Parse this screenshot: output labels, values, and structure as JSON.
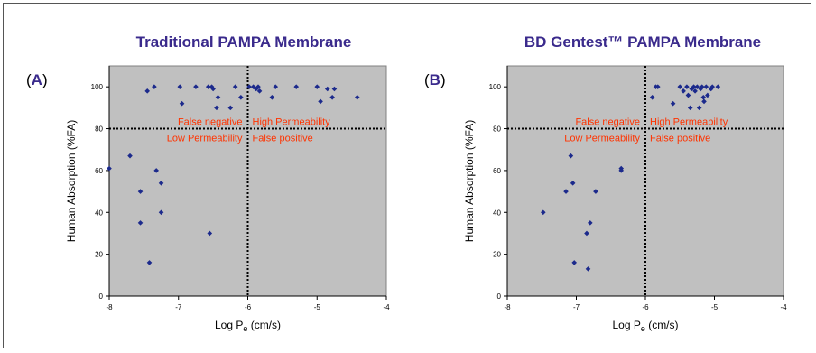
{
  "chart_data": [
    {
      "type": "scatter",
      "panel_label": "(A)",
      "title": "Traditional PAMPA Membrane",
      "xlabel": "Log P",
      "xlabel_sub": "e",
      "xlabel_unit": " (cm/s)",
      "ylabel": "Human Absorption (%FA)",
      "xlim": [
        -8,
        -4
      ],
      "ylim": [
        0,
        110
      ],
      "x_ticks": [
        "-8",
        "-7",
        "-6",
        "-5",
        "-4"
      ],
      "y_ticks": [
        "0",
        "20",
        "40",
        "60",
        "80",
        "100"
      ],
      "grid": false,
      "plot_bg": "#c0c0c0",
      "marker_color": "#1c2a8c",
      "threshold_x": -6,
      "threshold_y": 80,
      "quadrant_labels": {
        "top_left": "False negative",
        "top_right": "High Permeability",
        "bottom_left": "Low Permeability",
        "bottom_right": "False positive"
      },
      "quadrant_label_color": "#ff3300",
      "points": [
        [
          -8.0,
          61
        ],
        [
          -7.7,
          67
        ],
        [
          -7.55,
          50
        ],
        [
          -7.55,
          35
        ],
        [
          -7.45,
          98
        ],
        [
          -7.42,
          16
        ],
        [
          -7.35,
          100
        ],
        [
          -7.32,
          60
        ],
        [
          -7.25,
          54
        ],
        [
          -7.25,
          40
        ],
        [
          -6.98,
          100
        ],
        [
          -6.95,
          92
        ],
        [
          -6.75,
          100
        ],
        [
          -6.57,
          100
        ],
        [
          -6.55,
          30
        ],
        [
          -6.52,
          100
        ],
        [
          -6.5,
          99
        ],
        [
          -6.45,
          90
        ],
        [
          -6.43,
          95
        ],
        [
          -6.25,
          90
        ],
        [
          -6.18,
          100
        ],
        [
          -6.1,
          95
        ],
        [
          -5.98,
          100
        ],
        [
          -5.92,
          100
        ],
        [
          -5.88,
          99
        ],
        [
          -5.85,
          100
        ],
        [
          -5.83,
          98
        ],
        [
          -5.65,
          95
        ],
        [
          -5.6,
          100
        ],
        [
          -5.3,
          100
        ],
        [
          -5.0,
          100
        ],
        [
          -4.95,
          93
        ],
        [
          -4.85,
          99
        ],
        [
          -4.78,
          95
        ],
        [
          -4.75,
          99
        ],
        [
          -4.42,
          95
        ]
      ]
    },
    {
      "type": "scatter",
      "panel_label": "(B)",
      "title": "BD Gentest™ PAMPA Membrane",
      "xlabel": "Log P",
      "xlabel_sub": "e",
      "xlabel_unit": " (cm/s)",
      "ylabel": "Human Absorption (%FA)",
      "xlim": [
        -8,
        -4
      ],
      "ylim": [
        0,
        110
      ],
      "x_ticks": [
        "-8",
        "-7",
        "-6",
        "-5",
        "-4"
      ],
      "y_ticks": [
        "0",
        "20",
        "40",
        "60",
        "80",
        "100"
      ],
      "grid": false,
      "plot_bg": "#c0c0c0",
      "marker_color": "#1c2a8c",
      "threshold_x": -6,
      "threshold_y": 80,
      "quadrant_labels": {
        "top_left": "False negative",
        "top_right": "High Permeability",
        "bottom_left": "Low Permeability",
        "bottom_right": "False positive"
      },
      "quadrant_label_color": "#ff3300",
      "points": [
        [
          -7.48,
          40
        ],
        [
          -7.15,
          50
        ],
        [
          -7.08,
          67
        ],
        [
          -7.05,
          54
        ],
        [
          -7.03,
          16
        ],
        [
          -6.85,
          30
        ],
        [
          -6.83,
          13
        ],
        [
          -6.8,
          35
        ],
        [
          -6.72,
          50
        ],
        [
          -6.35,
          61
        ],
        [
          -6.35,
          60
        ],
        [
          -5.9,
          95
        ],
        [
          -5.85,
          100
        ],
        [
          -5.82,
          100
        ],
        [
          -5.6,
          92
        ],
        [
          -5.5,
          100
        ],
        [
          -5.45,
          98
        ],
        [
          -5.4,
          100
        ],
        [
          -5.38,
          96
        ],
        [
          -5.35,
          90
        ],
        [
          -5.33,
          99
        ],
        [
          -5.3,
          100
        ],
        [
          -5.28,
          98
        ],
        [
          -5.25,
          100
        ],
        [
          -5.22,
          90
        ],
        [
          -5.2,
          99
        ],
        [
          -5.18,
          100
        ],
        [
          -5.16,
          95
        ],
        [
          -5.15,
          93
        ],
        [
          -5.12,
          100
        ],
        [
          -5.1,
          96
        ],
        [
          -5.05,
          99
        ],
        [
          -5.03,
          100
        ],
        [
          -4.95,
          100
        ]
      ]
    }
  ]
}
